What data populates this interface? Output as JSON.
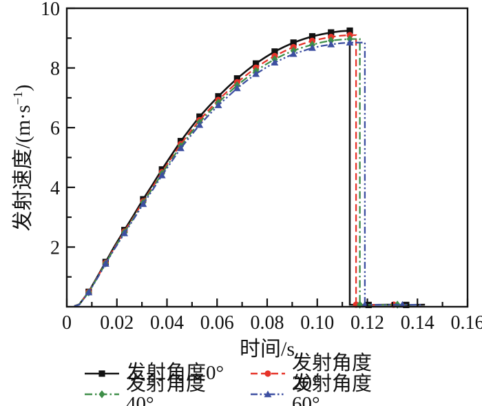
{
  "axes": {
    "y_label_parts": {
      "prefix": "发射速度/(m·s",
      "sup": "−1",
      "suffix": ")"
    }
  },
  "chart_data": {
    "type": "line",
    "title": "",
    "xlabel": "时间/s",
    "ylabel": "发射速度/(m·s⁻¹)",
    "xlim": [
      0,
      0.16
    ],
    "ylim": [
      0,
      10
    ],
    "grid": false,
    "legend_position": "bottom",
    "x_ticks": {
      "values": [
        0,
        0.02,
        0.04,
        0.06,
        0.08,
        0.1,
        0.12,
        0.14,
        0.16
      ],
      "labels": [
        "0",
        "0.02",
        "0.04",
        "0.06",
        "0.08",
        "0.10",
        "0.12",
        "0.14",
        "0.16"
      ],
      "minor": [
        0.01,
        0.03,
        0.05,
        0.07,
        0.09,
        0.11,
        0.13,
        0.15
      ]
    },
    "y_ticks": {
      "values": [
        2,
        4,
        6,
        8,
        10
      ],
      "labels": [
        "2",
        "4",
        "6",
        "8",
        "10"
      ],
      "minor": [
        1,
        3,
        5,
        7,
        9
      ]
    },
    "series": [
      {
        "name": "发射角度0°",
        "color": "#111111",
        "dash": null,
        "marker": "square",
        "marker_start": 2,
        "marker_every": 2,
        "peak_velocity": 9.25,
        "cutoff_time": 0.113,
        "points": [
          [
            0.003,
            0.02
          ],
          [
            0.005,
            0.08
          ],
          [
            0.00875,
            0.5
          ],
          [
            0.0125,
            1.05
          ],
          [
            0.0155,
            1.5
          ],
          [
            0.019,
            2.02
          ],
          [
            0.023,
            2.57
          ],
          [
            0.0268,
            3.08
          ],
          [
            0.0305,
            3.6
          ],
          [
            0.0343,
            4.1
          ],
          [
            0.038,
            4.6
          ],
          [
            0.0418,
            5.08
          ],
          [
            0.0455,
            5.55
          ],
          [
            0.0493,
            5.97
          ],
          [
            0.053,
            6.37
          ],
          [
            0.0568,
            6.72
          ],
          [
            0.0605,
            7.05
          ],
          [
            0.0643,
            7.36
          ],
          [
            0.068,
            7.65
          ],
          [
            0.0718,
            7.91
          ],
          [
            0.0755,
            8.15
          ],
          [
            0.0793,
            8.36
          ],
          [
            0.083,
            8.55
          ],
          [
            0.0868,
            8.71
          ],
          [
            0.0905,
            8.85
          ],
          [
            0.0943,
            8.96
          ],
          [
            0.098,
            9.06
          ],
          [
            0.1018,
            9.13
          ],
          [
            0.1055,
            9.19
          ],
          [
            0.1093,
            9.23
          ],
          [
            0.113,
            9.25
          ],
          [
            0.113,
            0.07
          ],
          [
            0.1205,
            0.06
          ],
          [
            0.128,
            0.07
          ],
          [
            0.1355,
            0.06
          ],
          [
            0.143,
            0.07
          ]
        ]
      },
      {
        "name": "发射角度20°",
        "color": "#e63329",
        "dash": [
          10,
          5
        ],
        "marker": "circle",
        "marker_start": 2,
        "marker_every": 2,
        "peak_velocity": 9.1,
        "cutoff_time": 0.1155,
        "points": [
          [
            0.003,
            0.02
          ],
          [
            0.005,
            0.08
          ],
          [
            0.00875,
            0.49
          ],
          [
            0.0125,
            1.03
          ],
          [
            0.0155,
            1.47
          ],
          [
            0.019,
            1.98
          ],
          [
            0.023,
            2.52
          ],
          [
            0.0268,
            3.02
          ],
          [
            0.0305,
            3.53
          ],
          [
            0.0343,
            4.02
          ],
          [
            0.038,
            4.51
          ],
          [
            0.0418,
            4.99
          ],
          [
            0.0455,
            5.45
          ],
          [
            0.0493,
            5.86
          ],
          [
            0.053,
            6.25
          ],
          [
            0.0568,
            6.6
          ],
          [
            0.0605,
            6.93
          ],
          [
            0.0643,
            7.23
          ],
          [
            0.068,
            7.52
          ],
          [
            0.0718,
            7.77
          ],
          [
            0.0755,
            8.01
          ],
          [
            0.0793,
            8.22
          ],
          [
            0.083,
            8.4
          ],
          [
            0.0868,
            8.56
          ],
          [
            0.0905,
            8.7
          ],
          [
            0.0943,
            8.81
          ],
          [
            0.098,
            8.91
          ],
          [
            0.1018,
            8.98
          ],
          [
            0.1055,
            9.04
          ],
          [
            0.1093,
            9.08
          ],
          [
            0.113,
            9.1
          ],
          [
            0.1155,
            9.1
          ],
          [
            0.1155,
            0.07
          ],
          [
            0.123,
            0.06
          ],
          [
            0.1305,
            0.07
          ],
          [
            0.138,
            0.06
          ]
        ]
      },
      {
        "name": "发射角度40°",
        "color": "#3e8e48",
        "dash": [
          11,
          4,
          2.5,
          4
        ],
        "marker": "diamond",
        "marker_start": 2,
        "marker_every": 2,
        "peak_velocity": 8.97,
        "cutoff_time": 0.117,
        "points": [
          [
            0.003,
            0.02
          ],
          [
            0.005,
            0.08
          ],
          [
            0.00875,
            0.48
          ],
          [
            0.0125,
            1.02
          ],
          [
            0.0155,
            1.45
          ],
          [
            0.019,
            1.96
          ],
          [
            0.023,
            2.49
          ],
          [
            0.0268,
            2.99
          ],
          [
            0.0305,
            3.49
          ],
          [
            0.0343,
            3.98
          ],
          [
            0.038,
            4.46
          ],
          [
            0.0418,
            4.93
          ],
          [
            0.0455,
            5.38
          ],
          [
            0.0493,
            5.79
          ],
          [
            0.053,
            6.18
          ],
          [
            0.0568,
            6.52
          ],
          [
            0.0605,
            6.84
          ],
          [
            0.0643,
            7.14
          ],
          [
            0.068,
            7.42
          ],
          [
            0.0718,
            7.67
          ],
          [
            0.0755,
            7.9
          ],
          [
            0.0793,
            8.11
          ],
          [
            0.083,
            8.29
          ],
          [
            0.0868,
            8.45
          ],
          [
            0.0905,
            8.58
          ],
          [
            0.0943,
            8.69
          ],
          [
            0.098,
            8.78
          ],
          [
            0.1018,
            8.86
          ],
          [
            0.1055,
            8.92
          ],
          [
            0.1093,
            8.95
          ],
          [
            0.113,
            8.97
          ],
          [
            0.117,
            8.97
          ],
          [
            0.117,
            0.07
          ],
          [
            0.1245,
            0.06
          ],
          [
            0.132,
            0.07
          ],
          [
            0.1395,
            0.06
          ]
        ]
      },
      {
        "name": "发射角度60°",
        "color": "#3d4fa1",
        "dash": [
          10,
          3.5,
          2.5,
          3.5,
          2.5,
          3.5
        ],
        "marker": "triangle",
        "marker_start": 2,
        "marker_every": 2,
        "peak_velocity": 8.85,
        "cutoff_time": 0.119,
        "points": [
          [
            0.003,
            0.02
          ],
          [
            0.005,
            0.07
          ],
          [
            0.00875,
            0.48
          ],
          [
            0.0125,
            1.0
          ],
          [
            0.0155,
            1.44
          ],
          [
            0.019,
            1.93
          ],
          [
            0.023,
            2.46
          ],
          [
            0.0268,
            2.95
          ],
          [
            0.0305,
            3.44
          ],
          [
            0.0343,
            3.92
          ],
          [
            0.038,
            4.4
          ],
          [
            0.0418,
            4.86
          ],
          [
            0.0455,
            5.31
          ],
          [
            0.0493,
            5.71
          ],
          [
            0.053,
            6.09
          ],
          [
            0.0568,
            6.43
          ],
          [
            0.0605,
            6.75
          ],
          [
            0.0643,
            7.04
          ],
          [
            0.068,
            7.32
          ],
          [
            0.0718,
            7.57
          ],
          [
            0.0755,
            7.8
          ],
          [
            0.0793,
            8.0
          ],
          [
            0.083,
            8.18
          ],
          [
            0.0868,
            8.33
          ],
          [
            0.0905,
            8.47
          ],
          [
            0.0943,
            8.57
          ],
          [
            0.098,
            8.67
          ],
          [
            0.1018,
            8.74
          ],
          [
            0.1055,
            8.79
          ],
          [
            0.1093,
            8.83
          ],
          [
            0.113,
            8.85
          ],
          [
            0.119,
            8.85
          ],
          [
            0.119,
            0.07
          ],
          [
            0.1265,
            0.06
          ],
          [
            0.134,
            0.07
          ],
          [
            0.1415,
            0.06
          ]
        ]
      }
    ]
  }
}
